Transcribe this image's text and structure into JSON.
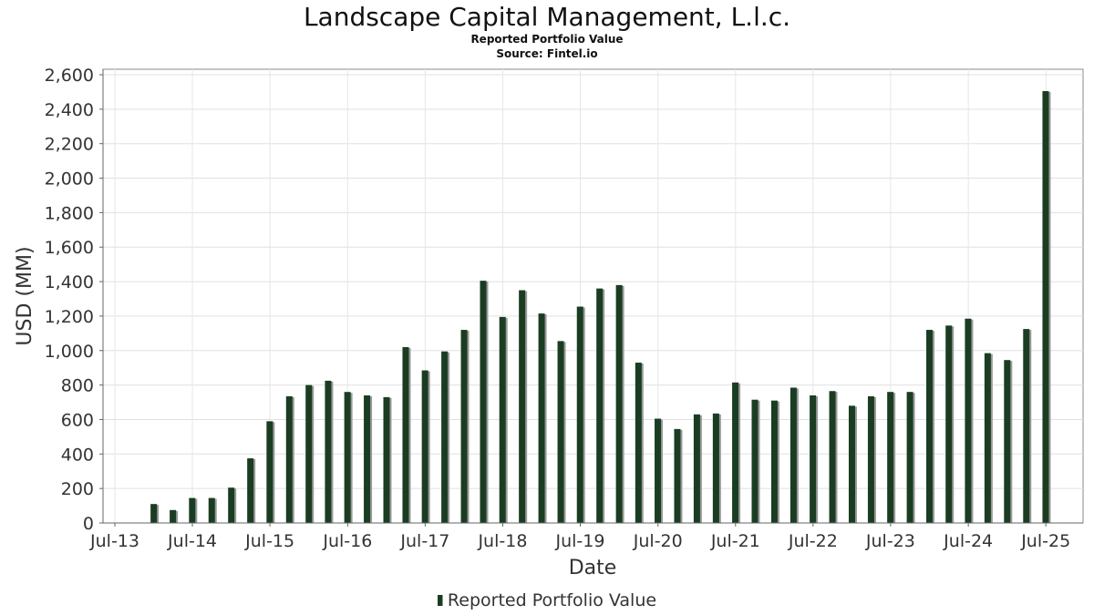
{
  "chart_data": {
    "type": "bar",
    "title": "Landscape Capital Management, L.l.c.",
    "subtitle": "Reported Portfolio Value",
    "source": "Source: Fintel.io",
    "xlabel": "Date",
    "ylabel": "USD (MM)",
    "ylim": [
      0,
      2600
    ],
    "yticks": [
      "0",
      "200",
      "400",
      "600",
      "800",
      "1,000",
      "1,200",
      "1,400",
      "1,600",
      "1,800",
      "2,000",
      "2,200",
      "2,400",
      "2,600"
    ],
    "xticks": [
      "Jul-13",
      "Jul-14",
      "Jul-15",
      "Jul-16",
      "Jul-17",
      "Jul-18",
      "Jul-19",
      "Jul-20",
      "Jul-21",
      "Jul-22",
      "Jul-23",
      "Jul-24",
      "Jul-25"
    ],
    "grid": true,
    "legend_position": "bottom-center",
    "bar_color": "#1a3d22",
    "shadow_color": "#999999",
    "series": [
      {
        "name": "Reported Portfolio Value",
        "x": [
          "2013-12-31",
          "2014-03-31",
          "2014-06-30",
          "2014-09-30",
          "2014-12-31",
          "2015-03-31",
          "2015-06-30",
          "2015-09-30",
          "2015-12-31",
          "2016-03-31",
          "2016-06-30",
          "2016-09-30",
          "2016-12-31",
          "2017-03-31",
          "2017-06-30",
          "2017-09-30",
          "2017-12-31",
          "2018-03-31",
          "2018-06-30",
          "2018-09-30",
          "2018-12-31",
          "2019-03-31",
          "2019-06-30",
          "2019-09-30",
          "2019-12-31",
          "2020-03-31",
          "2020-06-30",
          "2020-09-30",
          "2020-12-31",
          "2021-03-31",
          "2021-06-30",
          "2021-09-30",
          "2021-12-31",
          "2022-03-31",
          "2022-06-30",
          "2022-09-30",
          "2022-12-31",
          "2023-03-31",
          "2023-06-30",
          "2023-09-30",
          "2023-12-31",
          "2024-03-31",
          "2024-06-30",
          "2024-09-30",
          "2024-12-31",
          "2025-03-31",
          "2025-06-30"
        ],
        "values": [
          110,
          75,
          145,
          145,
          205,
          375,
          590,
          735,
          800,
          825,
          760,
          740,
          730,
          1020,
          885,
          995,
          1120,
          1405,
          1195,
          1350,
          1215,
          1055,
          1255,
          1360,
          1380,
          930,
          605,
          545,
          630,
          635,
          815,
          715,
          710,
          785,
          740,
          765,
          680,
          735,
          760,
          760,
          1120,
          1145,
          1185,
          985,
          945,
          1125,
          2505
        ]
      }
    ]
  }
}
